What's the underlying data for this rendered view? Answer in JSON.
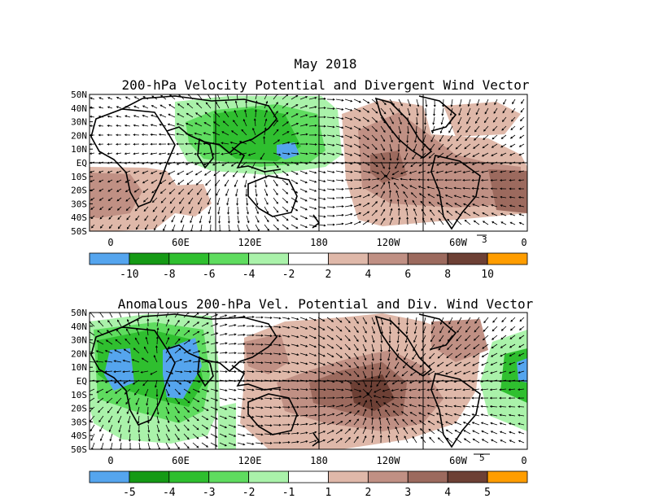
{
  "title_month": "May 2018",
  "panels": [
    {
      "id": "total",
      "title": "200-hPa Velocity Potential and Divergent Wind Vector",
      "lat_labels": [
        "50N",
        "40N",
        "30N",
        "20N",
        "10N",
        "EQ",
        "10S",
        "20S",
        "30S",
        "40S",
        "50S"
      ],
      "lon_labels": [
        "0",
        "60E",
        "120E",
        "180",
        "120W",
        "60W",
        "0"
      ],
      "vector_ref": "3",
      "colorbar": {
        "colors": [
          "#55a5ee",
          "#159a15",
          "#2fbf2f",
          "#5fdc5f",
          "#aaf2aa",
          "#ffffff",
          "#dfb8a9",
          "#c09084",
          "#9c6a5e",
          "#6d4035",
          "#ff9d00"
        ],
        "labels": [
          "-10",
          "-8",
          "-6",
          "-4",
          "-2",
          "2",
          "4",
          "6",
          "8",
          "10"
        ]
      }
    },
    {
      "id": "anomaly",
      "title": "Anomalous 200-hPa Vel. Potential and Div. Wind Vector",
      "lat_labels": [
        "50N",
        "40N",
        "30N",
        "20N",
        "10N",
        "EQ",
        "10S",
        "20S",
        "30S",
        "40S",
        "50S"
      ],
      "lon_labels": [
        "0",
        "60E",
        "120E",
        "180",
        "120W",
        "60W",
        "0"
      ],
      "vector_ref": "5",
      "colorbar": {
        "colors": [
          "#55a5ee",
          "#159a15",
          "#2fbf2f",
          "#5fdc5f",
          "#aaf2aa",
          "#ffffff",
          "#dfb8a9",
          "#c09084",
          "#9c6a5e",
          "#6d4035",
          "#ff9d00"
        ],
        "labels": [
          "-5",
          "-4",
          "-3",
          "-2",
          "-1",
          "1",
          "2",
          "3",
          "4",
          "5"
        ]
      }
    }
  ],
  "field_colors": {
    "blue": "#55a5ee",
    "green_dark": "#2fbf2f",
    "green_mid": "#5fdc5f",
    "green_light": "#aaf2aa",
    "brown_light": "#dfb8a9",
    "brown_mid": "#c09084",
    "brown_dark": "#9c6a5e",
    "brown_darkest": "#6d4035"
  }
}
